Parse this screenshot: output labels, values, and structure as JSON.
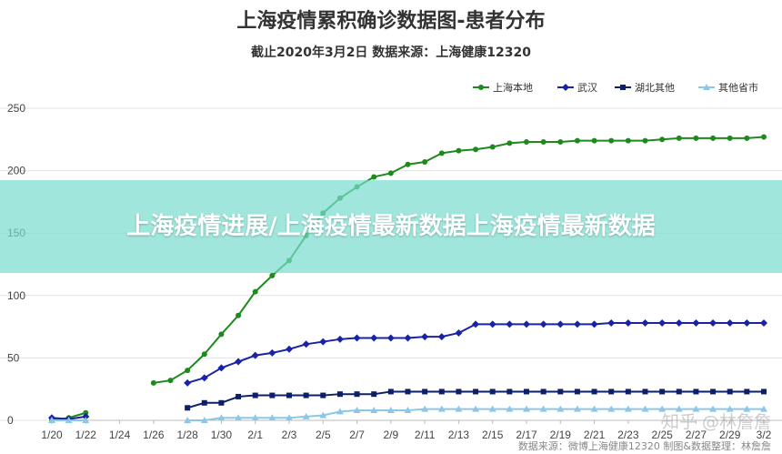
{
  "chart_data": {
    "type": "line",
    "title": "上海疫情累积确诊数据图-患者分布",
    "subtitle": "截止2020年3月2日 数据来源：上海健康12320",
    "categories": [
      "1/20",
      "1/21",
      "1/22",
      "1/23",
      "1/24",
      "1/25",
      "1/26",
      "1/27",
      "1/28",
      "1/29",
      "1/30",
      "1/31",
      "2/1",
      "2/2",
      "2/3",
      "2/4",
      "2/5",
      "2/6",
      "2/7",
      "2/8",
      "2/9",
      "2/10",
      "2/11",
      "2/12",
      "2/13",
      "2/14",
      "2/15",
      "2/16",
      "2/17",
      "2/18",
      "2/19",
      "2/20",
      "2/21",
      "2/22",
      "2/23",
      "2/24",
      "2/25",
      "2/26",
      "2/27",
      "2/28",
      "2/29",
      "3/1",
      "3/2"
    ],
    "x_tick_labels": [
      "1/20",
      "1/22",
      "1/24",
      "1/26",
      "1/28",
      "1/30",
      "2/1",
      "2/3",
      "2/5",
      "2/7",
      "2/9",
      "2/11",
      "2/13",
      "2/15",
      "2/17",
      "2/19",
      "2/21",
      "2/23",
      "2/25",
      "2/27",
      "2/29",
      "3/2"
    ],
    "ylim": [
      0,
      250
    ],
    "y_ticks": [
      0,
      50,
      100,
      150,
      200,
      250
    ],
    "grid": true,
    "legend_position": "top-right",
    "series": [
      {
        "name": "上海本地",
        "color": "#1e8a1e",
        "marker": "circle",
        "values": [
          0,
          2,
          6,
          null,
          null,
          null,
          30,
          32,
          40,
          53,
          69,
          84,
          103,
          116,
          128,
          148,
          166,
          178,
          187,
          195,
          198,
          205,
          207,
          214,
          216,
          217,
          219,
          222,
          223,
          223,
          223,
          224,
          224,
          224,
          224,
          224,
          225,
          226,
          226,
          226,
          226,
          226,
          227
        ]
      },
      {
        "name": "武汉",
        "color": "#1a23a5",
        "marker": "diamond",
        "values": [
          2,
          1,
          3,
          null,
          null,
          null,
          null,
          null,
          30,
          34,
          42,
          47,
          52,
          54,
          57,
          61,
          63,
          65,
          66,
          66,
          66,
          66,
          67,
          67,
          70,
          77,
          77,
          77,
          77,
          77,
          77,
          77,
          77,
          78,
          78,
          78,
          78,
          78,
          78,
          78,
          78,
          78,
          78
        ]
      },
      {
        "name": "湖北其他",
        "color": "#0d1f66",
        "marker": "square",
        "values": [
          null,
          null,
          null,
          null,
          null,
          null,
          null,
          null,
          10,
          14,
          14,
          19,
          20,
          20,
          20,
          20,
          20,
          21,
          21,
          21,
          23,
          23,
          23,
          23,
          23,
          23,
          23,
          23,
          23,
          23,
          23,
          23,
          23,
          23,
          23,
          23,
          23,
          23,
          23,
          23,
          23,
          23,
          23
        ]
      },
      {
        "name": "其他省市",
        "color": "#8ec7e6",
        "marker": "triangle",
        "values": [
          0,
          0,
          0,
          null,
          null,
          null,
          null,
          null,
          0,
          0,
          2,
          2,
          2,
          2,
          2,
          3,
          4,
          7,
          8,
          8,
          8,
          8,
          9,
          9,
          9,
          9,
          9,
          9,
          9,
          9,
          9,
          9,
          9,
          9,
          9,
          9,
          9,
          9,
          9,
          9,
          9,
          9,
          9
        ]
      }
    ]
  },
  "overlay": {
    "headline": "上海疫情进展/上海疫情最新数据上海疫情最新数据"
  },
  "watermark": "知乎 @林詹詹",
  "footer_source": "数据来源：微博上海健康12320 制图&数据整理：林詹詹"
}
